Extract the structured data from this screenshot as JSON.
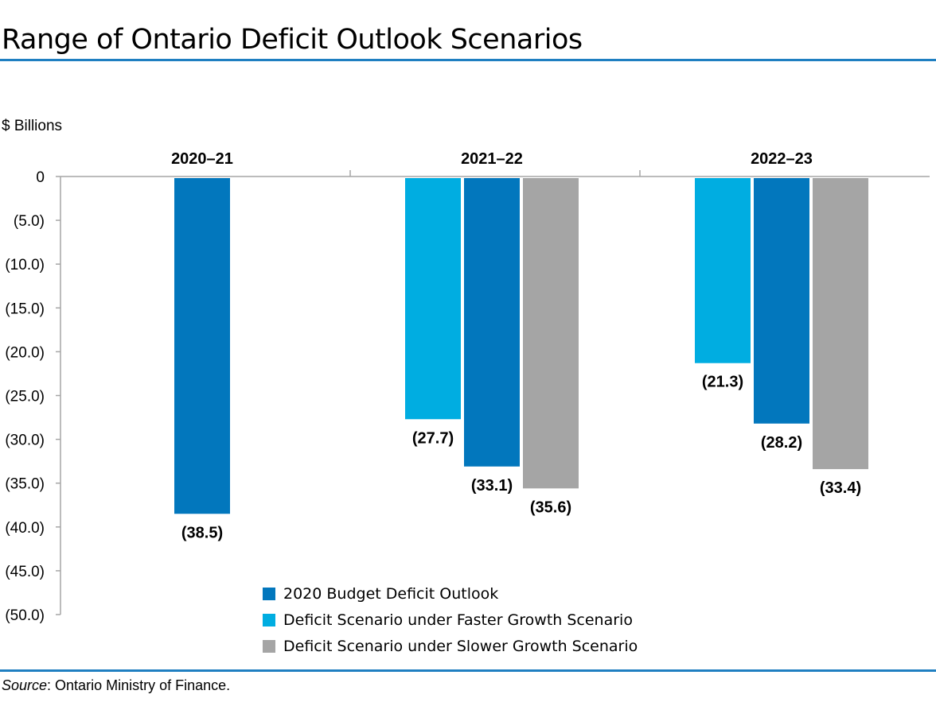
{
  "title": "Range of Ontario Deficit Outlook Scenarios",
  "source": {
    "label": "Source",
    "text": ": Ontario Ministry of Finance."
  },
  "chart_data": {
    "type": "bar",
    "title": "Range of Ontario Deficit Outlook Scenarios",
    "ylabel": "$ Billions",
    "xlabel": "",
    "ylim": [
      -50,
      0
    ],
    "y_ticks": [
      0,
      -5,
      -10,
      -15,
      -20,
      -25,
      -30,
      -35,
      -40,
      -45,
      -50
    ],
    "y_tick_labels": [
      "0",
      "(5.0)",
      "(10.0)",
      "(15.0)",
      "(20.0)",
      "(25.0)",
      "(30.0)",
      "(35.0)",
      "(40.0)",
      "(45.0)",
      "(50.0)"
    ],
    "categories": [
      "2020–21",
      "2021–22",
      "2022–23"
    ],
    "series": [
      {
        "name": "2020 Budget Deficit Outlook",
        "color": "#0277bd",
        "values": [
          -38.5,
          -33.1,
          -28.2
        ],
        "labels": [
          "(38.5)",
          "(33.1)",
          "(28.2)"
        ]
      },
      {
        "name": "Deficit Scenario under Faster Growth Scenario",
        "color": "#00ade1",
        "values": [
          null,
          -27.7,
          -21.3
        ],
        "labels": [
          null,
          "(27.7)",
          "(21.3)"
        ]
      },
      {
        "name": "Deficit Scenario under Slower Growth Scenario",
        "color": "#a5a5a5",
        "values": [
          null,
          -35.6,
          -33.4
        ],
        "labels": [
          null,
          "(35.6)",
          "(33.4)"
        ]
      }
    ],
    "legend": [
      "2020 Budget Deficit Outlook",
      "Deficit Scenario under Faster Growth Scenario",
      "Deficit Scenario under Slower Growth Scenario"
    ],
    "legend_position": "bottom-center",
    "grid": false
  }
}
